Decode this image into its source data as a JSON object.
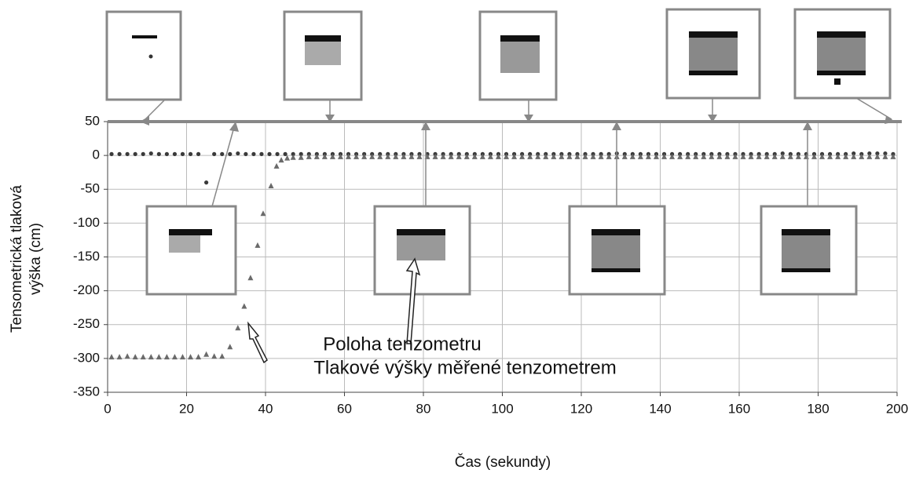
{
  "chart_data": {
    "type": "scatter",
    "xlabel": "Čas (sekundy)",
    "ylabel": [
      "Tensometrická tlaková",
      "výška (cm)"
    ],
    "annotations": [
      "Poloha tenzometru",
      "Tlakové výšky měřené tenzometrem"
    ],
    "xlim": [
      0,
      200
    ],
    "xticks": [
      0,
      20,
      40,
      60,
      80,
      100,
      120,
      140,
      160,
      180,
      200
    ],
    "ylim": [
      -350,
      50
    ],
    "yticks": [
      50,
      0,
      -50,
      -100,
      -150,
      -200,
      -250,
      -300,
      -350
    ],
    "grid": true,
    "series": [
      {
        "marker": "circle",
        "color": "#3a3a3a",
        "x": [
          1,
          3,
          5,
          7,
          9,
          11,
          13,
          15,
          17,
          19,
          21,
          23,
          25,
          27,
          29,
          31,
          33,
          35,
          37,
          39,
          41,
          43,
          45,
          47,
          49,
          51,
          53,
          55,
          57,
          59,
          61,
          63,
          65,
          67,
          69,
          71,
          73,
          75,
          77,
          79,
          81,
          83,
          85,
          87,
          89,
          91,
          93,
          95,
          97,
          99,
          101,
          103,
          105,
          107,
          109,
          111,
          113,
          115,
          117,
          119,
          121,
          123,
          125,
          127,
          129,
          131,
          133,
          135,
          137,
          139,
          141,
          143,
          145,
          147,
          149,
          151,
          153,
          155,
          157,
          159,
          161,
          163,
          165,
          167,
          169,
          171,
          173,
          175,
          177,
          179,
          181,
          183,
          185,
          187,
          189,
          191,
          193,
          195,
          197,
          199
        ],
        "values": [
          2,
          2,
          2,
          2,
          2,
          3,
          2,
          2,
          2,
          2,
          2,
          2,
          -40,
          2,
          2,
          2,
          3,
          2,
          2,
          2,
          2,
          2,
          2,
          2,
          2,
          2,
          2,
          2,
          2,
          2,
          2,
          2,
          2,
          2,
          2,
          2,
          2,
          2,
          2,
          2,
          2,
          2,
          2,
          2,
          2,
          2,
          2,
          2,
          2,
          2,
          2,
          2,
          2,
          2,
          2,
          2,
          2,
          2,
          2,
          2,
          2,
          2,
          2,
          2,
          3,
          2,
          2,
          2,
          2,
          2,
          2,
          2,
          2,
          2,
          2,
          2,
          2,
          2,
          2,
          2,
          2,
          2,
          2,
          2,
          2,
          3,
          2,
          2,
          2,
          2,
          2,
          2,
          2,
          2,
          3,
          2,
          3,
          3,
          3,
          2
        ]
      },
      {
        "marker": "triangle",
        "color": "#6a6a6a",
        "x": [
          1,
          3,
          5,
          7,
          9,
          11,
          13,
          15,
          17,
          19,
          21,
          23,
          25,
          27,
          29,
          31,
          33,
          34.6,
          36.2,
          38,
          39.4,
          41.4,
          42.8,
          44,
          45.5,
          47,
          49,
          51,
          53,
          55,
          57,
          59,
          61,
          63,
          65,
          67,
          69,
          71,
          73,
          75,
          77,
          79,
          81,
          83,
          85,
          87,
          89,
          91,
          93,
          95,
          97,
          99,
          101,
          103,
          105,
          107,
          109,
          111,
          113,
          115,
          117,
          119,
          121,
          123,
          125,
          127,
          129,
          131,
          133,
          135,
          137,
          139,
          141,
          143,
          145,
          147,
          149,
          151,
          153,
          155,
          157,
          159,
          161,
          163,
          165,
          167,
          169,
          171,
          173,
          175,
          177,
          179,
          181,
          183,
          185,
          187,
          189,
          191,
          193,
          195,
          197,
          199
        ],
        "values": [
          -298,
          -298,
          -297,
          -298,
          -298,
          -298,
          -298,
          -298,
          -298,
          -298,
          -298,
          -298,
          -294,
          -297,
          -297,
          -283,
          -255,
          -223,
          -181,
          -133,
          -86,
          -45,
          -16,
          -7,
          -4,
          -3,
          -3,
          -2,
          -2,
          -2,
          -2,
          -2,
          -2,
          -2,
          -2,
          -2,
          -2,
          -2,
          -2,
          -2,
          -2,
          -2,
          -2,
          -2,
          -2,
          -2,
          -2,
          -2,
          -2,
          -2,
          -2,
          -2,
          -2,
          -2,
          -2,
          -2,
          -2,
          -2,
          -2,
          -2,
          -2,
          -2,
          -2,
          -2,
          -2,
          -2,
          -2,
          -2,
          -2,
          -2,
          -2,
          -2,
          -2,
          -2,
          -2,
          -2,
          -2,
          -2,
          -2,
          -2,
          -2,
          -2,
          -2,
          -2,
          -2,
          -2,
          -2,
          -2,
          -2,
          -2,
          -2,
          -2,
          -2,
          -2,
          -2,
          -2,
          -2,
          -2,
          -2,
          -2,
          -2,
          -2
        ]
      }
    ]
  }
}
